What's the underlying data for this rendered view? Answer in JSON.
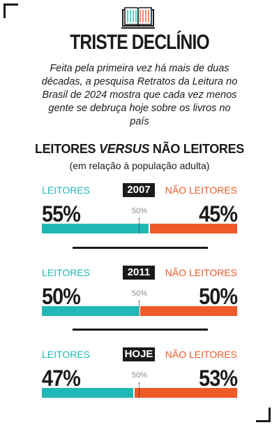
{
  "title": "TRISTE DECLÍNIO",
  "subtitle": "Feita pela primeira vez há mais de duas décadas, a pesquisa Retratos da Leitura no Brasil de 2024 mostra que cada vez menos gente se debruça hoje sobre os livros no país",
  "section_title": {
    "part1": "LEITORES ",
    "part2": "VERSUS",
    "part3": " NÃO LEITORES"
  },
  "section_note": "(em relação à população adulta)",
  "colors": {
    "readers": "#1fb8b4",
    "non_readers": "#f05a28"
  },
  "icons": {
    "header": "open-book-icon"
  },
  "chart_data": {
    "type": "bar",
    "stacked": true,
    "orientation": "horizontal",
    "categories": [
      "2007",
      "2011",
      "HOJE"
    ],
    "series": [
      {
        "name": "LEITORES",
        "values": [
          55,
          50,
          47
        ]
      },
      {
        "name": "NÃO LEITORES",
        "values": [
          45,
          50,
          53
        ]
      }
    ],
    "reference_line": "50%",
    "xlim": [
      0,
      100
    ]
  },
  "panels": [
    {
      "year": "2007",
      "left_label": "LEITORES",
      "right_label": "NÃO LEITORES",
      "left_pct": "55%",
      "right_pct": "45%",
      "mid": "50%",
      "left_value": 55
    },
    {
      "year": "2011",
      "left_label": "LEITORES",
      "right_label": "NÃO LEITORES",
      "left_pct": "50%",
      "right_pct": "50%",
      "mid": "50%",
      "left_value": 50
    },
    {
      "year": "HOJE",
      "left_label": "LEITORES",
      "right_label": "NÃO LEITORES",
      "left_pct": "47%",
      "right_pct": "53%",
      "mid": "50%",
      "left_value": 47
    }
  ]
}
